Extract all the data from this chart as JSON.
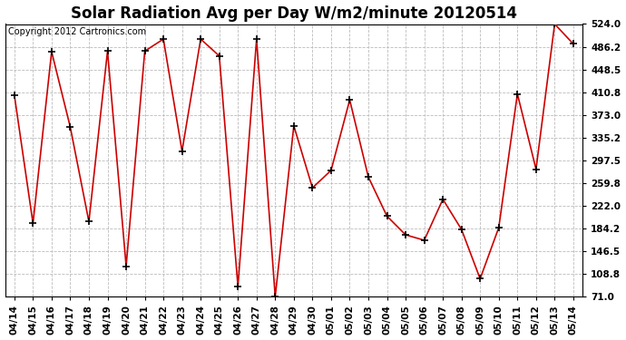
{
  "title": "Solar Radiation Avg per Day W/m2/minute 20120514",
  "copyright": "Copyright 2012 Cartronics.com",
  "categories": [
    "04/14",
    "04/15",
    "04/16",
    "04/17",
    "04/18",
    "04/19",
    "04/20",
    "04/21",
    "04/22",
    "04/23",
    "04/24",
    "04/25",
    "04/26",
    "04/27",
    "04/28",
    "04/29",
    "04/30",
    "05/01",
    "05/02",
    "05/03",
    "05/04",
    "05/05",
    "05/06",
    "05/07",
    "05/08",
    "05/09",
    "05/10",
    "05/11",
    "05/12",
    "05/13",
    "05/14"
  ],
  "values": [
    406,
    193,
    478,
    353,
    196,
    479,
    122,
    479,
    499,
    313,
    499,
    471,
    88,
    499,
    71,
    355,
    252,
    281,
    398,
    270,
    205,
    174,
    165,
    233,
    183,
    101,
    186,
    408,
    283,
    524,
    491
  ],
  "line_color": "#cc0000",
  "marker": "+",
  "marker_size": 6,
  "marker_color": "#000000",
  "bg_color": "#ffffff",
  "plot_bg_color": "#ffffff",
  "grid_color": "#bbbbbb",
  "yticks": [
    71.0,
    108.8,
    146.5,
    184.2,
    222.0,
    259.8,
    297.5,
    335.2,
    373.0,
    410.8,
    448.5,
    486.2,
    524.0
  ],
  "ylim": [
    71.0,
    524.0
  ],
  "title_fontsize": 12,
  "copyright_fontsize": 7,
  "tick_fontsize": 7.5
}
